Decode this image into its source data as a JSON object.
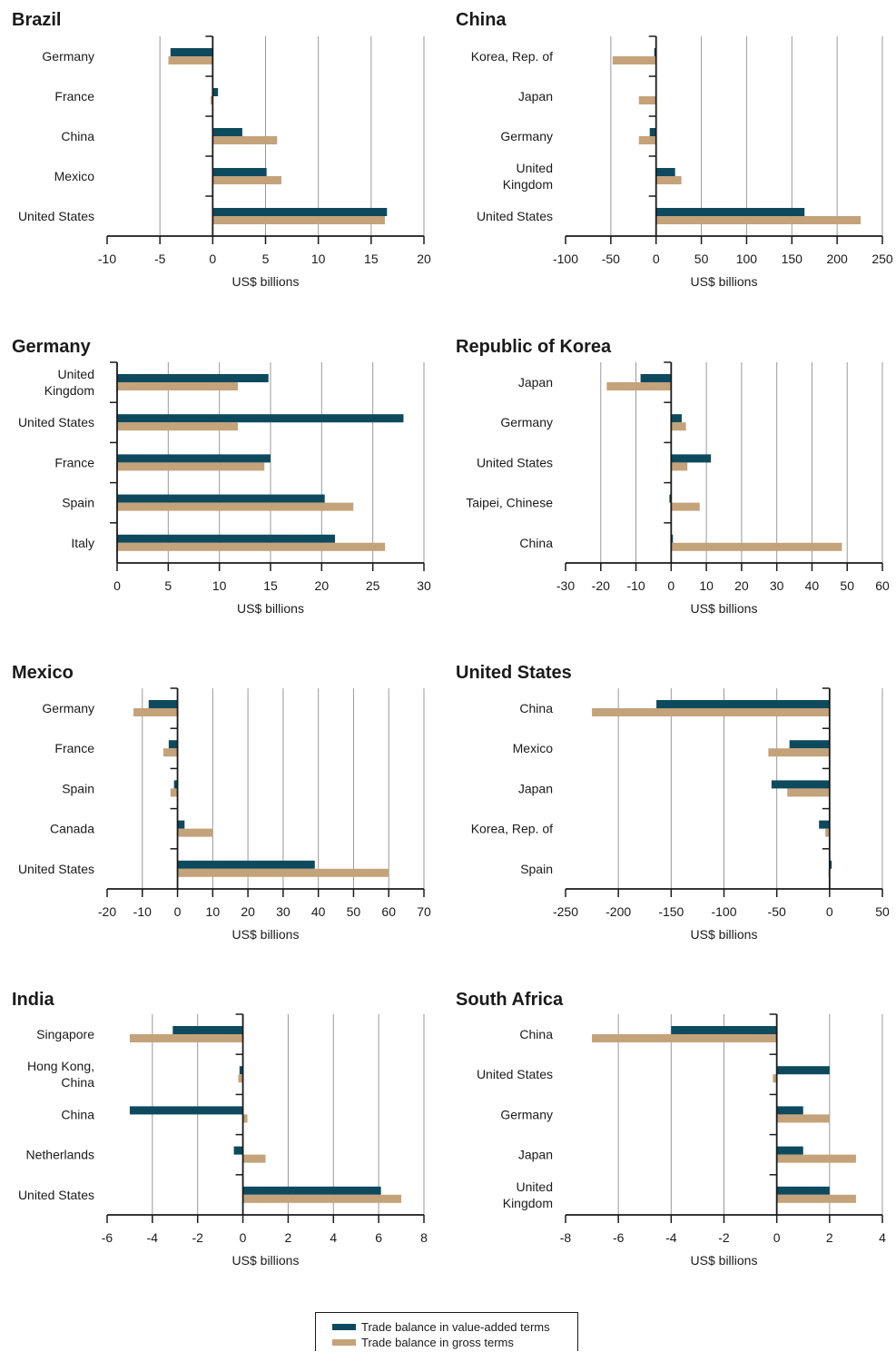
{
  "colors": {
    "value_added": "#0e4a5e",
    "gross": "#c4a27a",
    "axis": "#1a1a1a",
    "grid": "#999999"
  },
  "legend": {
    "value_added": "Trade balance in value-added terms",
    "gross": "Trade balance in gross terms"
  },
  "chart_data": [
    {
      "type": "bar",
      "title": "Brazil",
      "xlabel": "US$ billions",
      "xlim": [
        -10,
        20
      ],
      "xticks": [
        -10,
        -5,
        0,
        5,
        10,
        15,
        20
      ],
      "categories": [
        "Germany",
        "France",
        "China",
        "Mexico",
        "United States"
      ],
      "series": [
        {
          "name": "Trade balance in value-added terms",
          "values": [
            -4,
            0.5,
            2.8,
            5.1,
            16.5
          ]
        },
        {
          "name": "Trade balance in gross terms",
          "values": [
            -4.2,
            -0.2,
            6.1,
            6.5,
            16.3
          ]
        }
      ]
    },
    {
      "type": "bar",
      "title": "China",
      "xlabel": "US$ billions",
      "xlim": [
        -100,
        250
      ],
      "xticks": [
        -100,
        -50,
        0,
        50,
        100,
        150,
        200,
        250
      ],
      "categories": [
        "Korea, Rep. of",
        "Japan",
        "Germany",
        "United\nKingdom",
        "United States"
      ],
      "series": [
        {
          "name": "Trade balance in value-added terms",
          "values": [
            -2,
            0,
            -7,
            21,
            164
          ]
        },
        {
          "name": "Trade balance in gross terms",
          "values": [
            -48,
            -19,
            -19,
            28,
            226
          ]
        }
      ]
    },
    {
      "type": "bar",
      "title": "Germany",
      "xlabel": "US$ billions",
      "xlim": [
        0,
        30
      ],
      "xticks": [
        0,
        5,
        10,
        15,
        20,
        25,
        30
      ],
      "categories": [
        "United\nKingdom",
        "United States",
        "France",
        "Spain",
        "Italy"
      ],
      "series": [
        {
          "name": "Trade balance in value-added terms",
          "values": [
            14.8,
            28,
            15,
            20.3,
            21.3
          ]
        },
        {
          "name": "Trade balance in gross terms",
          "values": [
            11.8,
            11.8,
            14.4,
            23.1,
            26.2
          ]
        }
      ]
    },
    {
      "type": "bar",
      "title": "Republic of Korea",
      "xlabel": "US$ billions",
      "xlim": [
        -30,
        60
      ],
      "xticks": [
        -30,
        -20,
        -10,
        0,
        10,
        20,
        30,
        40,
        50,
        60
      ],
      "categories": [
        "Japan",
        "Germany",
        "United States",
        "Taipei, Chinese",
        "China"
      ],
      "series": [
        {
          "name": "Trade balance in value-added terms",
          "values": [
            -8.7,
            3,
            11.3,
            -0.5,
            0.5
          ]
        },
        {
          "name": "Trade balance in gross terms",
          "values": [
            -18.3,
            4.2,
            4.6,
            8.1,
            48.5
          ]
        }
      ]
    },
    {
      "type": "bar",
      "title": "Mexico",
      "xlabel": "US$ billions",
      "xlim": [
        -20,
        70
      ],
      "xticks": [
        -20,
        -10,
        0,
        10,
        20,
        30,
        40,
        50,
        60,
        70
      ],
      "categories": [
        "Germany",
        "France",
        "Spain",
        "Canada",
        "United States"
      ],
      "series": [
        {
          "name": "Trade balance in value-added terms",
          "values": [
            -8.2,
            -2.5,
            -1,
            2,
            39
          ]
        },
        {
          "name": "Trade balance in gross terms",
          "values": [
            -12.5,
            -4,
            -2,
            10,
            60
          ]
        }
      ]
    },
    {
      "type": "bar",
      "title": "United States",
      "xlabel": "US$ billions",
      "xlim": [
        -250,
        50
      ],
      "xticks": [
        -250,
        -200,
        -150,
        -100,
        -50,
        0,
        50
      ],
      "categories": [
        "China",
        "Mexico",
        "Japan",
        "Korea, Rep. of",
        "Spain"
      ],
      "series": [
        {
          "name": "Trade balance in value-added terms",
          "values": [
            -164,
            -38,
            -55,
            -10,
            2
          ]
        },
        {
          "name": "Trade balance in gross terms",
          "values": [
            -225,
            -58,
            -40,
            -4,
            -1
          ]
        }
      ]
    },
    {
      "type": "bar",
      "title": "India",
      "xlabel": "US$ billions",
      "xlim": [
        -6,
        8
      ],
      "xticks": [
        -6,
        -4,
        -2,
        0,
        2,
        4,
        6,
        8
      ],
      "categories": [
        "Singapore",
        "Hong Kong,\nChina",
        "China",
        "Netherlands",
        "United States"
      ],
      "series": [
        {
          "name": "Trade balance in value-added terms",
          "values": [
            -3.1,
            -0.15,
            -5,
            -0.4,
            6.1
          ]
        },
        {
          "name": "Trade balance in gross terms",
          "values": [
            -5,
            -0.2,
            0.2,
            1,
            7
          ]
        }
      ]
    },
    {
      "type": "bar",
      "title": "South Africa",
      "xlabel": "US$ billions",
      "xlim": [
        -8,
        4
      ],
      "xticks": [
        -8,
        -6,
        -4,
        -2,
        0,
        2,
        4
      ],
      "categories": [
        "China",
        "United States",
        "Germany",
        "Japan",
        "United\nKingdom"
      ],
      "series": [
        {
          "name": "Trade balance in value-added terms",
          "values": [
            -4,
            2,
            1,
            1,
            2
          ]
        },
        {
          "name": "Trade balance in gross terms",
          "values": [
            -7,
            -0.15,
            2,
            3,
            3
          ]
        }
      ]
    }
  ]
}
